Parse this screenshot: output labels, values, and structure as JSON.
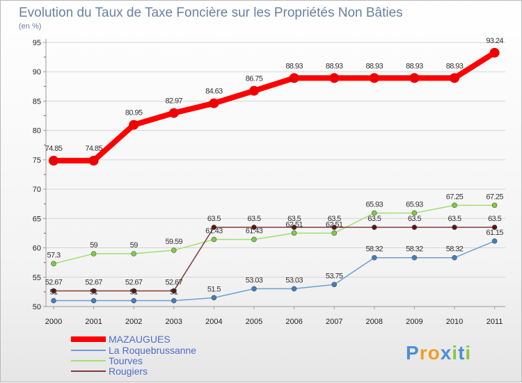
{
  "chart_data": {
    "type": "line",
    "title": "Evolution du Taux de Taxe Foncière sur les Propriétés Non Bâties",
    "subtitle": "(en %)",
    "categories": [
      "2000",
      "2001",
      "2002",
      "2003",
      "2004",
      "2005",
      "2006",
      "2007",
      "2008",
      "2009",
      "2010",
      "2011"
    ],
    "ylim": [
      50,
      95
    ],
    "yticks": [
      50,
      55,
      60,
      65,
      70,
      75,
      80,
      85,
      90,
      95
    ],
    "grid": "horizontal",
    "legend": "bottom-left",
    "series": [
      {
        "name": "La Roquebrussanne",
        "color": "#6a9fd4",
        "marker": "#3d7fc0",
        "values": [
          51,
          51,
          51,
          51,
          51.5,
          53.03,
          53.03,
          53.75,
          58.32,
          58.32,
          58.32,
          61.15
        ],
        "labels": [
          "51",
          "51",
          "51",
          "51",
          "51.5",
          "53.03",
          "53.03",
          "53.75",
          "58.32",
          "58.32",
          "58.32",
          "61.15"
        ]
      },
      {
        "name": "Tourves",
        "color": "#9ee070",
        "marker": "#7ccc46",
        "values": [
          57.3,
          59,
          59,
          59.59,
          61.43,
          61.43,
          62.51,
          62.51,
          65.93,
          65.93,
          67.25,
          67.25
        ],
        "labels": [
          "57.3",
          "59",
          "59",
          "59.59",
          "61.43",
          "61.43",
          "62.51",
          "62.51",
          "65.93",
          "65.93",
          "67.25",
          "67.25"
        ]
      },
      {
        "name": "Rougiers",
        "color": "#7d3a3a",
        "marker": "#5a1414",
        "values": [
          52.67,
          52.67,
          52.67,
          52.67,
          63.5,
          63.5,
          63.5,
          63.5,
          63.5,
          63.5,
          63.5,
          63.5
        ],
        "labels": [
          "52.67",
          "52.67",
          "52.67",
          "52.67",
          "63.5",
          "63.5",
          "63.5",
          "63.5",
          "63.5",
          "63.5",
          "63.5",
          "63.5"
        ]
      },
      {
        "name": "MAZAUGUES",
        "color": "#ff0000",
        "marker": "#ee0000",
        "values": [
          74.85,
          74.85,
          80.95,
          82.97,
          84.63,
          86.75,
          88.93,
          88.93,
          88.93,
          88.93,
          88.93,
          93.24
        ],
        "labels": [
          "74.85",
          "74.85",
          "80.95",
          "82.97",
          "84.63",
          "86.75",
          "88.93",
          "88.93",
          "88.93",
          "88.93",
          "88.93",
          "93.24"
        ]
      }
    ],
    "legend_order": [
      "MAZAUGUES",
      "La Roquebrussanne",
      "Tourves",
      "Rougiers"
    ]
  },
  "logo": {
    "text": "Proxiti",
    "letters": [
      "P",
      "r",
      "o",
      "x",
      "i",
      "t",
      "i"
    ],
    "colors": [
      "#4a8fd8",
      "#f0a020",
      "#f0a020",
      "#4a8fd8",
      "#8cc63f",
      "#4a8fd8",
      "#8cc63f"
    ]
  }
}
